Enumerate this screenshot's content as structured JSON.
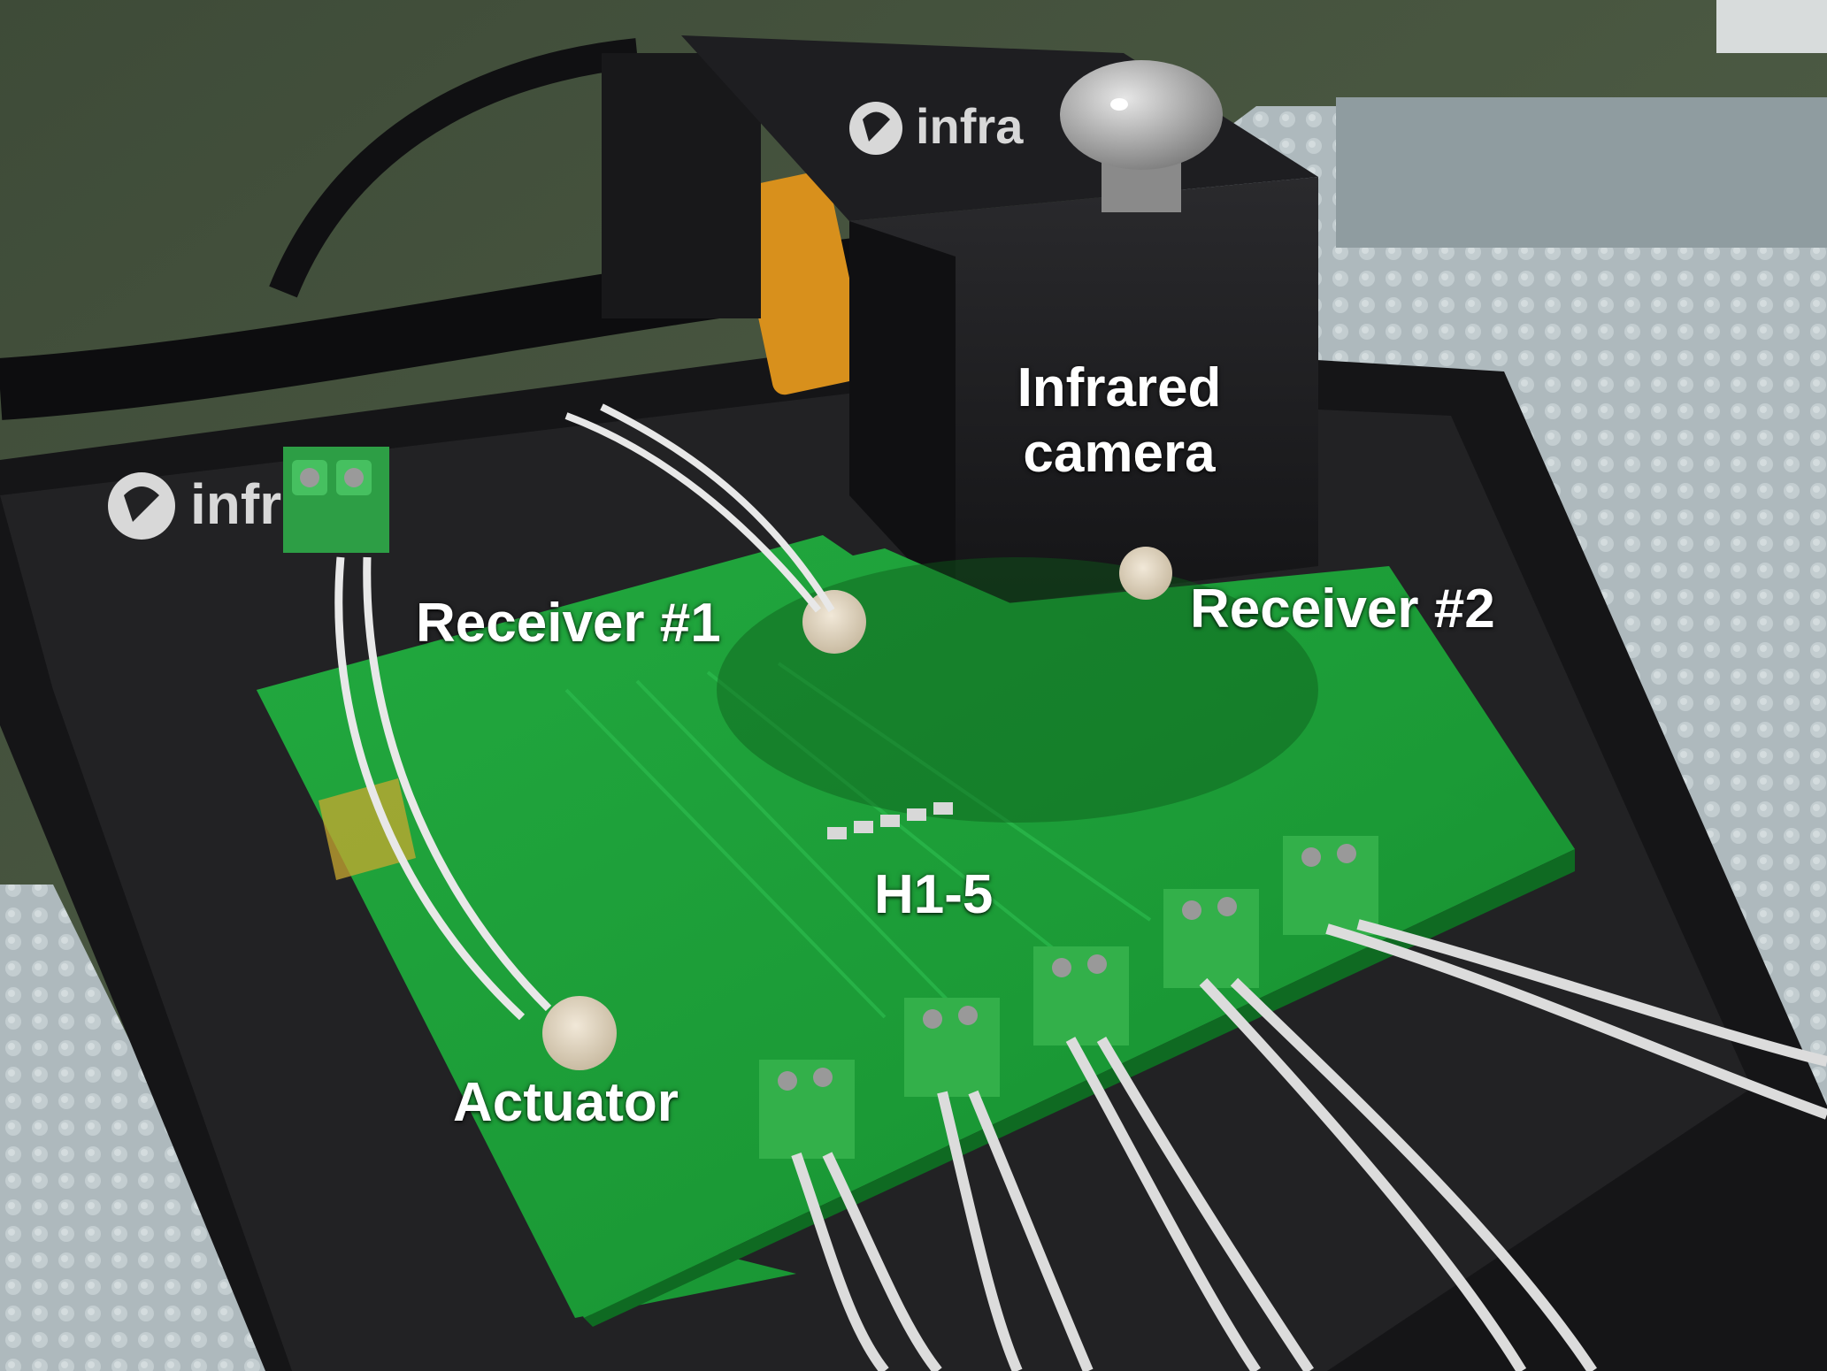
{
  "labels": {
    "camera_line1": "Infrared",
    "camera_line2": "camera",
    "receiver1": "Receiver #1",
    "receiver2": "Receiver #2",
    "heaters": "H1-5",
    "actuator": "Actuator"
  },
  "logo_text": "infra",
  "colors": {
    "pcb": "#1ea33a",
    "terminal": "#33b04a",
    "camera": "#1c1c1e",
    "annotation": "#ffffff"
  }
}
